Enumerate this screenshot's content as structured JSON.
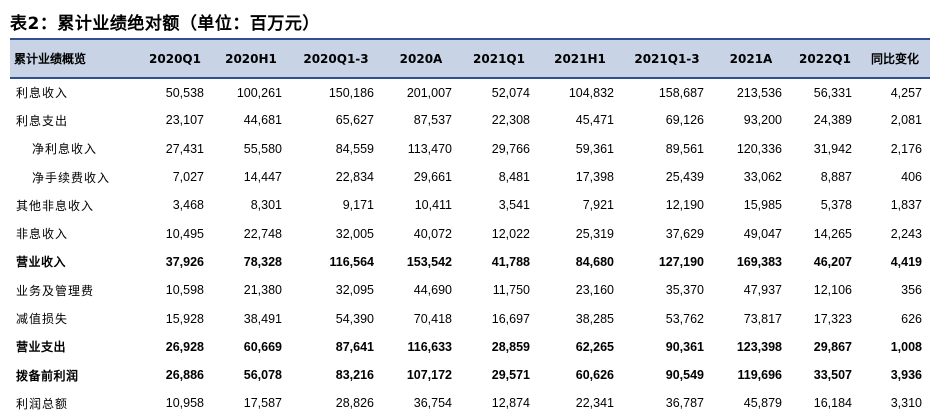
{
  "caption": "表2：累计业绩绝对额（单位：百万元）",
  "header": [
    "累计业绩概览",
    "2020Q1",
    "2020H1",
    "2020Q1-3",
    "2020A",
    "2021Q1",
    "2021H1",
    "2021Q1-3",
    "2021A",
    "2022Q1",
    "同比变化"
  ],
  "rows": [
    {
      "label": "利息收入",
      "values": [
        "50,538",
        "100,261",
        "150,186",
        "201,007",
        "52,074",
        "104,832",
        "158,687",
        "213,536",
        "56,331",
        "4,257"
      ]
    },
    {
      "label": "利息支出",
      "values": [
        "23,107",
        "44,681",
        "65,627",
        "87,537",
        "22,308",
        "45,471",
        "69,126",
        "93,200",
        "24,389",
        "2,081"
      ]
    },
    {
      "label": "净利息收入",
      "values": [
        "27,431",
        "55,580",
        "84,559",
        "113,470",
        "29,766",
        "59,361",
        "89,561",
        "120,336",
        "31,942",
        "2,176"
      ]
    },
    {
      "label": "净手续费收入",
      "values": [
        "7,027",
        "14,447",
        "22,834",
        "29,661",
        "8,481",
        "17,398",
        "25,439",
        "33,062",
        "8,887",
        "406"
      ]
    },
    {
      "label": "其他非息收入",
      "values": [
        "3,468",
        "8,301",
        "9,171",
        "10,411",
        "3,541",
        "7,921",
        "12,190",
        "15,985",
        "5,378",
        "1,837"
      ]
    },
    {
      "label": "非息收入",
      "values": [
        "10,495",
        "22,748",
        "32,005",
        "40,072",
        "12,022",
        "25,319",
        "37,629",
        "49,047",
        "14,265",
        "2,243"
      ]
    },
    {
      "label": "营业收入",
      "values": [
        "37,926",
        "78,328",
        "116,564",
        "153,542",
        "41,788",
        "84,680",
        "127,190",
        "169,383",
        "46,207",
        "4,419"
      ]
    },
    {
      "label": "业务及管理费",
      "values": [
        "10,598",
        "21,380",
        "32,095",
        "44,690",
        "11,750",
        "23,160",
        "35,370",
        "47,937",
        "12,106",
        "356"
      ]
    },
    {
      "label": "减值损失",
      "values": [
        "15,928",
        "38,491",
        "54,390",
        "70,418",
        "16,697",
        "38,285",
        "53,762",
        "73,817",
        "17,323",
        "626"
      ]
    },
    {
      "label": "营业支出",
      "values": [
        "26,928",
        "60,669",
        "87,641",
        "116,633",
        "28,859",
        "62,265",
        "90,361",
        "123,398",
        "29,867",
        "1,008"
      ]
    },
    {
      "label": "拨备前利润",
      "values": [
        "26,886",
        "56,078",
        "83,216",
        "107,172",
        "29,571",
        "60,626",
        "90,549",
        "119,696",
        "33,507",
        "3,936"
      ]
    },
    {
      "label": "利润总额",
      "values": [
        "10,958",
        "17,587",
        "28,826",
        "36,754",
        "12,874",
        "22,341",
        "36,787",
        "45,879",
        "16,184",
        "3,310"
      ]
    }
  ]
}
